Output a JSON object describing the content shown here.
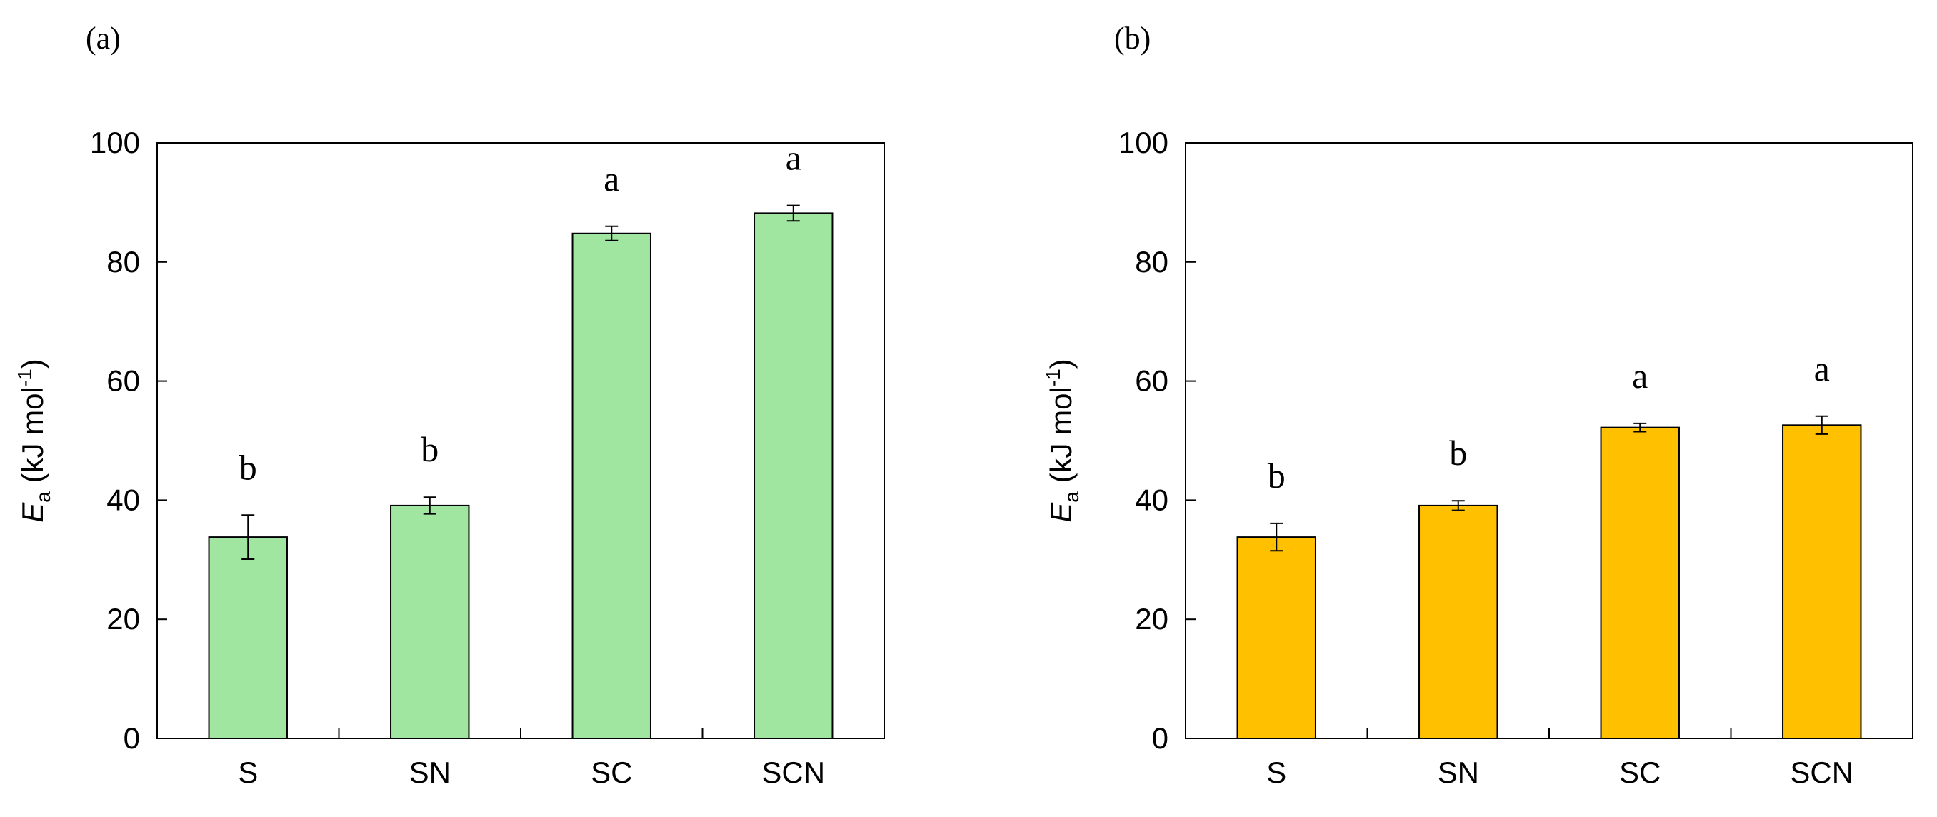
{
  "chart_data": [
    {
      "type": "bar",
      "panel_label": "(a)",
      "categories": [
        "S",
        "SN",
        "SC",
        "SCN"
      ],
      "values": [
        33.8,
        39.1,
        84.8,
        88.2
      ],
      "errors": [
        3.7,
        1.4,
        1.2,
        1.3
      ],
      "significance": [
        "b",
        "b",
        "a",
        "a"
      ],
      "ylabel_main": "E",
      "ylabel_sub": "a",
      "ylabel_rest": " (kJ mol",
      "ylabel_sup": "-1",
      "ylabel_end": ")",
      "ylim": [
        0,
        100
      ],
      "yticks": [
        0,
        20,
        40,
        60,
        80,
        100
      ],
      "bar_color": "#a0e5a0"
    },
    {
      "type": "bar",
      "panel_label": "(b)",
      "categories": [
        "S",
        "SN",
        "SC",
        "SCN"
      ],
      "values": [
        33.8,
        39.1,
        52.2,
        52.6
      ],
      "errors": [
        2.3,
        0.8,
        0.7,
        1.5
      ],
      "significance": [
        "b",
        "b",
        "a",
        "a"
      ],
      "ylabel_main": "E",
      "ylabel_sub": "a",
      "ylabel_rest": " (kJ mol",
      "ylabel_sup": "-1",
      "ylabel_end": ")",
      "ylim": [
        0,
        100
      ],
      "yticks": [
        0,
        20,
        40,
        60,
        80,
        100
      ],
      "bar_color": "#ffc000"
    }
  ]
}
